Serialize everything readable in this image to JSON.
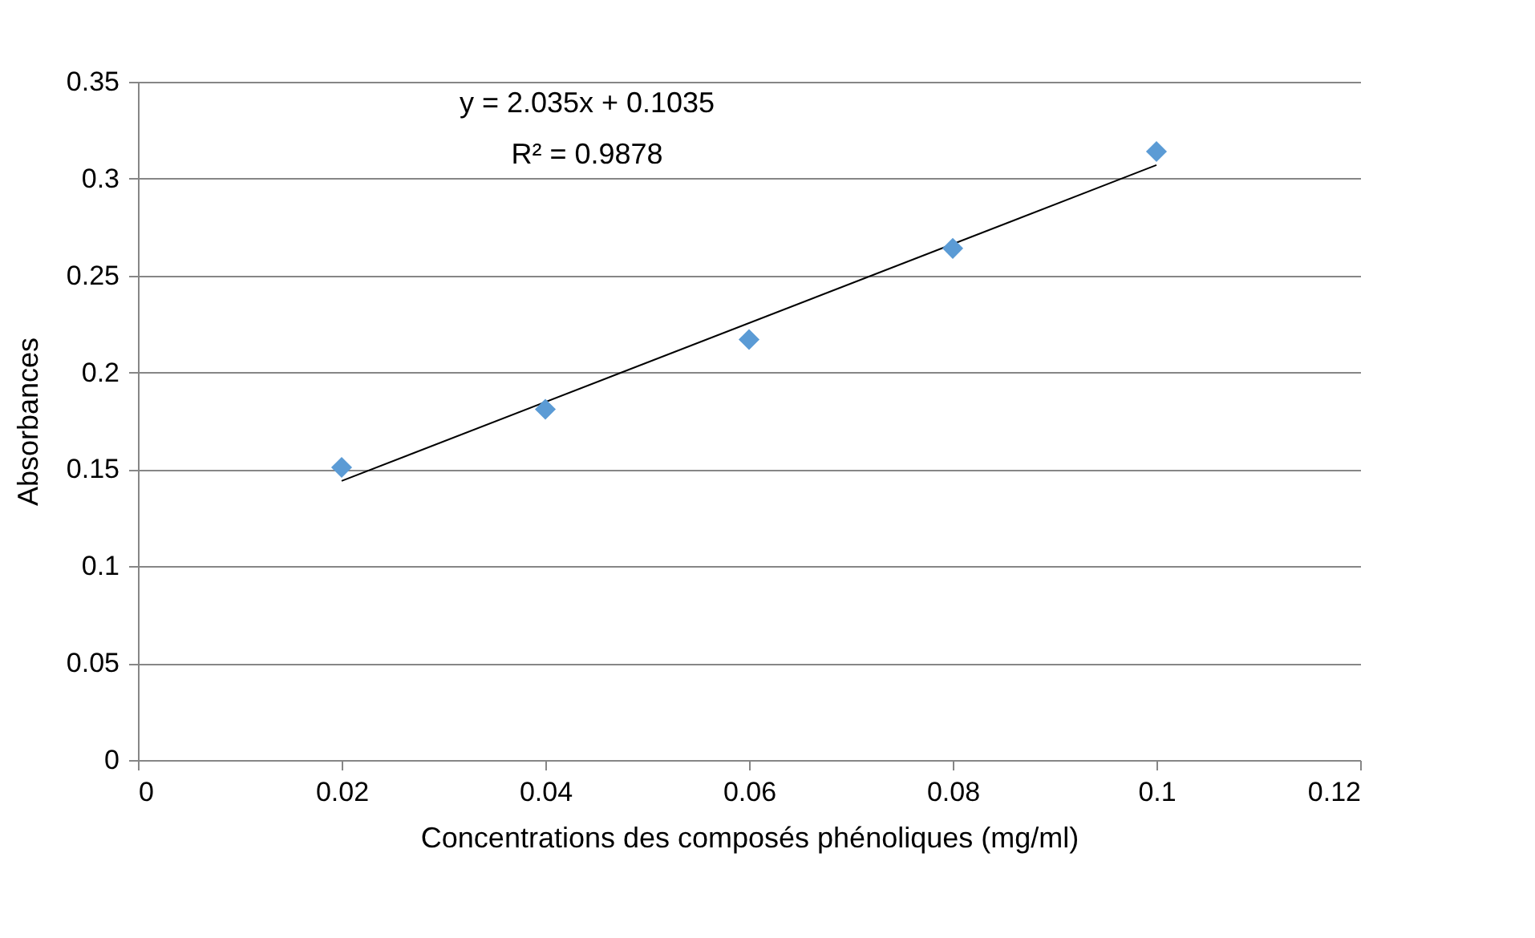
{
  "chart_data": {
    "type": "scatter",
    "xlabel": "Concentrations des composés phénoliques (mg/ml)",
    "ylabel": "Absorbances",
    "x": [
      0.02,
      0.04,
      0.06,
      0.08,
      0.1
    ],
    "series": [
      {
        "color": "#5b9bd5",
        "marker": "diamond",
        "values": [
          0.151,
          0.181,
          0.217,
          0.264,
          0.314
        ]
      },
      {
        "type": "line",
        "color": "#000000",
        "x": [
          0.02,
          0.1
        ],
        "marker": "none",
        "values": [
          0.144,
          0.307
        ]
      }
    ],
    "annotations": [
      "y = 2.035x + 0.1035",
      "R² = 0.9878"
    ],
    "xlim": [
      0,
      0.12
    ],
    "xticks": [
      0,
      0.02,
      0.04,
      0.06,
      0.08,
      0.1,
      0.12
    ],
    "ylim": [
      0,
      0.35
    ],
    "yticks": [
      0,
      0.05,
      0.1,
      0.15,
      0.2,
      0.25,
      0.3,
      0.35
    ],
    "grid": "y"
  }
}
